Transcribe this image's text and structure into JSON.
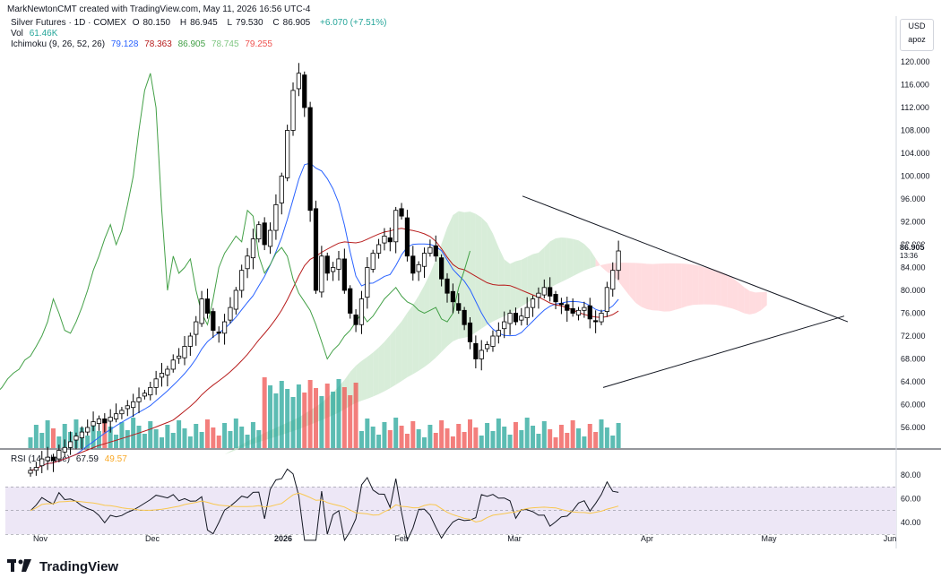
{
  "header": {
    "text": "MarkNewtonCMT created with TradingView.com, May 11, 2026 16:56 UTC-4"
  },
  "legend": {
    "symbol": "Silver Futures · 1D · COMEX",
    "open_label": "O",
    "open": "80.150",
    "high_label": "H",
    "high": "86.945",
    "low_label": "L",
    "low": "79.530",
    "close_label": "C",
    "close": "86.905",
    "change": "+6.070 (+7.51%)",
    "vol_label": "Vol",
    "vol": "61.46K",
    "ichimoku_label": "Ichimoku (9, 26, 52, 26)",
    "ichimoku_values": [
      "79.128",
      "78.363",
      "86.905",
      "78.745",
      "79.255"
    ],
    "rsi_label": "RSI (14, close)",
    "rsi": "67.59",
    "rsi_ma": "49.57"
  },
  "currency": {
    "unit": "USD",
    "scale": "apoz"
  },
  "price_axis": {
    "ticks": [
      "120.000",
      "116.000",
      "112.000",
      "108.000",
      "104.000",
      "100.000",
      "96.000",
      "92.000",
      "88.000",
      "84.000",
      "80.000",
      "76.000",
      "72.000",
      "68.000",
      "64.000",
      "60.000",
      "56.000"
    ],
    "last_price": "86.905",
    "countdown": "13:36"
  },
  "rsi_axis": {
    "ticks": [
      "80.00",
      "60.00",
      "40.00"
    ]
  },
  "time_axis": {
    "labels": [
      "Nov",
      "Dec",
      "2026",
      "Feb",
      "Mar",
      "Apr",
      "May",
      "Jun"
    ]
  },
  "colors": {
    "up": "#26a69a",
    "down": "#ef5350",
    "candle_up": "#ffffff",
    "candle_down": "#000000",
    "tenkan": "#2962ff",
    "kijun": "#b71c1c",
    "chikou": "#43a047",
    "cloud_green": "#c8e6c9",
    "cloud_red": "#ffcdd2",
    "rsi": "#131722",
    "rsi_ma": "#f9c74f",
    "rsi_band": "#ede7f6"
  },
  "footer": {
    "brand": "TradingView"
  },
  "chart_data": {
    "type": "candlestick",
    "title": "Silver Futures · 1D · COMEX",
    "ylim": [
      54,
      123
    ],
    "rsi_ylim": [
      20,
      90
    ],
    "x": [
      "2025-11-01",
      "2025-12-01",
      "2026-01-01",
      "2026-02-01",
      "2026-03-01",
      "2026-04-01",
      "2026-05-01",
      "2026-06-01"
    ],
    "close_series": [
      48.5,
      49.0,
      50.5,
      50.8,
      50.2,
      52.0,
      52.5,
      53.5,
      54.5,
      55.2,
      56.0,
      57.0,
      57.5,
      56.8,
      57.8,
      58.4,
      59.0,
      59.8,
      60.5,
      61.2,
      62.0,
      63.0,
      64.5,
      65.5,
      66.2,
      67.8,
      68.5,
      70.2,
      72.0,
      74.5,
      78.5,
      76.0,
      73.0,
      72.5,
      74.5,
      77.0,
      80.0,
      83.5,
      86.0,
      89.0,
      91.5,
      88.0,
      90.5,
      95.0,
      100.0,
      108.0,
      115.0,
      118.0,
      112.0,
      94.0,
      80.0,
      86.0,
      83.0,
      84.0,
      85.5,
      80.0,
      76.0,
      74.0,
      78.5,
      84.0,
      86.5,
      88.0,
      89.5,
      88.5,
      94.0,
      93.0,
      86.0,
      83.0,
      84.5,
      86.5,
      87.5,
      86.0,
      82.0,
      79.5,
      78.0,
      76.5,
      74.0,
      71.0,
      68.0,
      69.5,
      70.5,
      72.0,
      73.0,
      74.5,
      76.0,
      74.5,
      75.5,
      77.0,
      78.5,
      79.5,
      80.5,
      79.0,
      78.0,
      77.5,
      76.5,
      76.0,
      76.5,
      77.0,
      75.0,
      74.5,
      76.0,
      80.5,
      83.5,
      86.9
    ],
    "volume_note": "volume bars with green/red coloring",
    "trendlines": [
      {
        "name": "upper",
        "from": [
          "2026-02-27",
          96.5
        ],
        "to": [
          "2026-05-25",
          75.0
        ]
      },
      {
        "name": "lower",
        "from": [
          "2026-03-23",
          63.0
        ],
        "to": [
          "2026-05-25",
          75.5
        ]
      }
    ]
  }
}
